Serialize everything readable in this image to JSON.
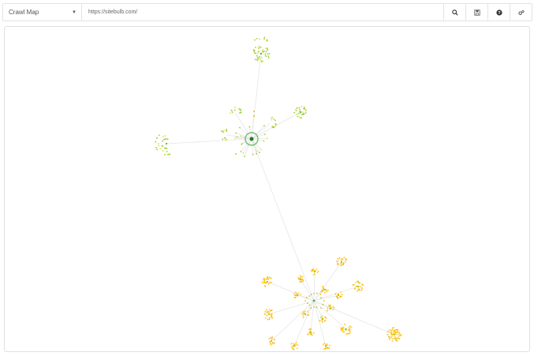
{
  "toolbar": {
    "view_select": {
      "selected": "Crawl Map"
    },
    "url_value": "https://sitebulb.com/",
    "buttons": [
      {
        "icon": "search-icon"
      },
      {
        "icon": "save-icon"
      },
      {
        "icon": "help-icon"
      },
      {
        "icon": "settings-icon"
      }
    ]
  },
  "graph": {
    "colors": {
      "root": "#1e7d1e",
      "level_green": "#4caf50",
      "level_lime": "#9acd32",
      "level_yellow": "#d4e157",
      "level_orange": "#ffb300",
      "edge": "#e6e6e6"
    }
  }
}
